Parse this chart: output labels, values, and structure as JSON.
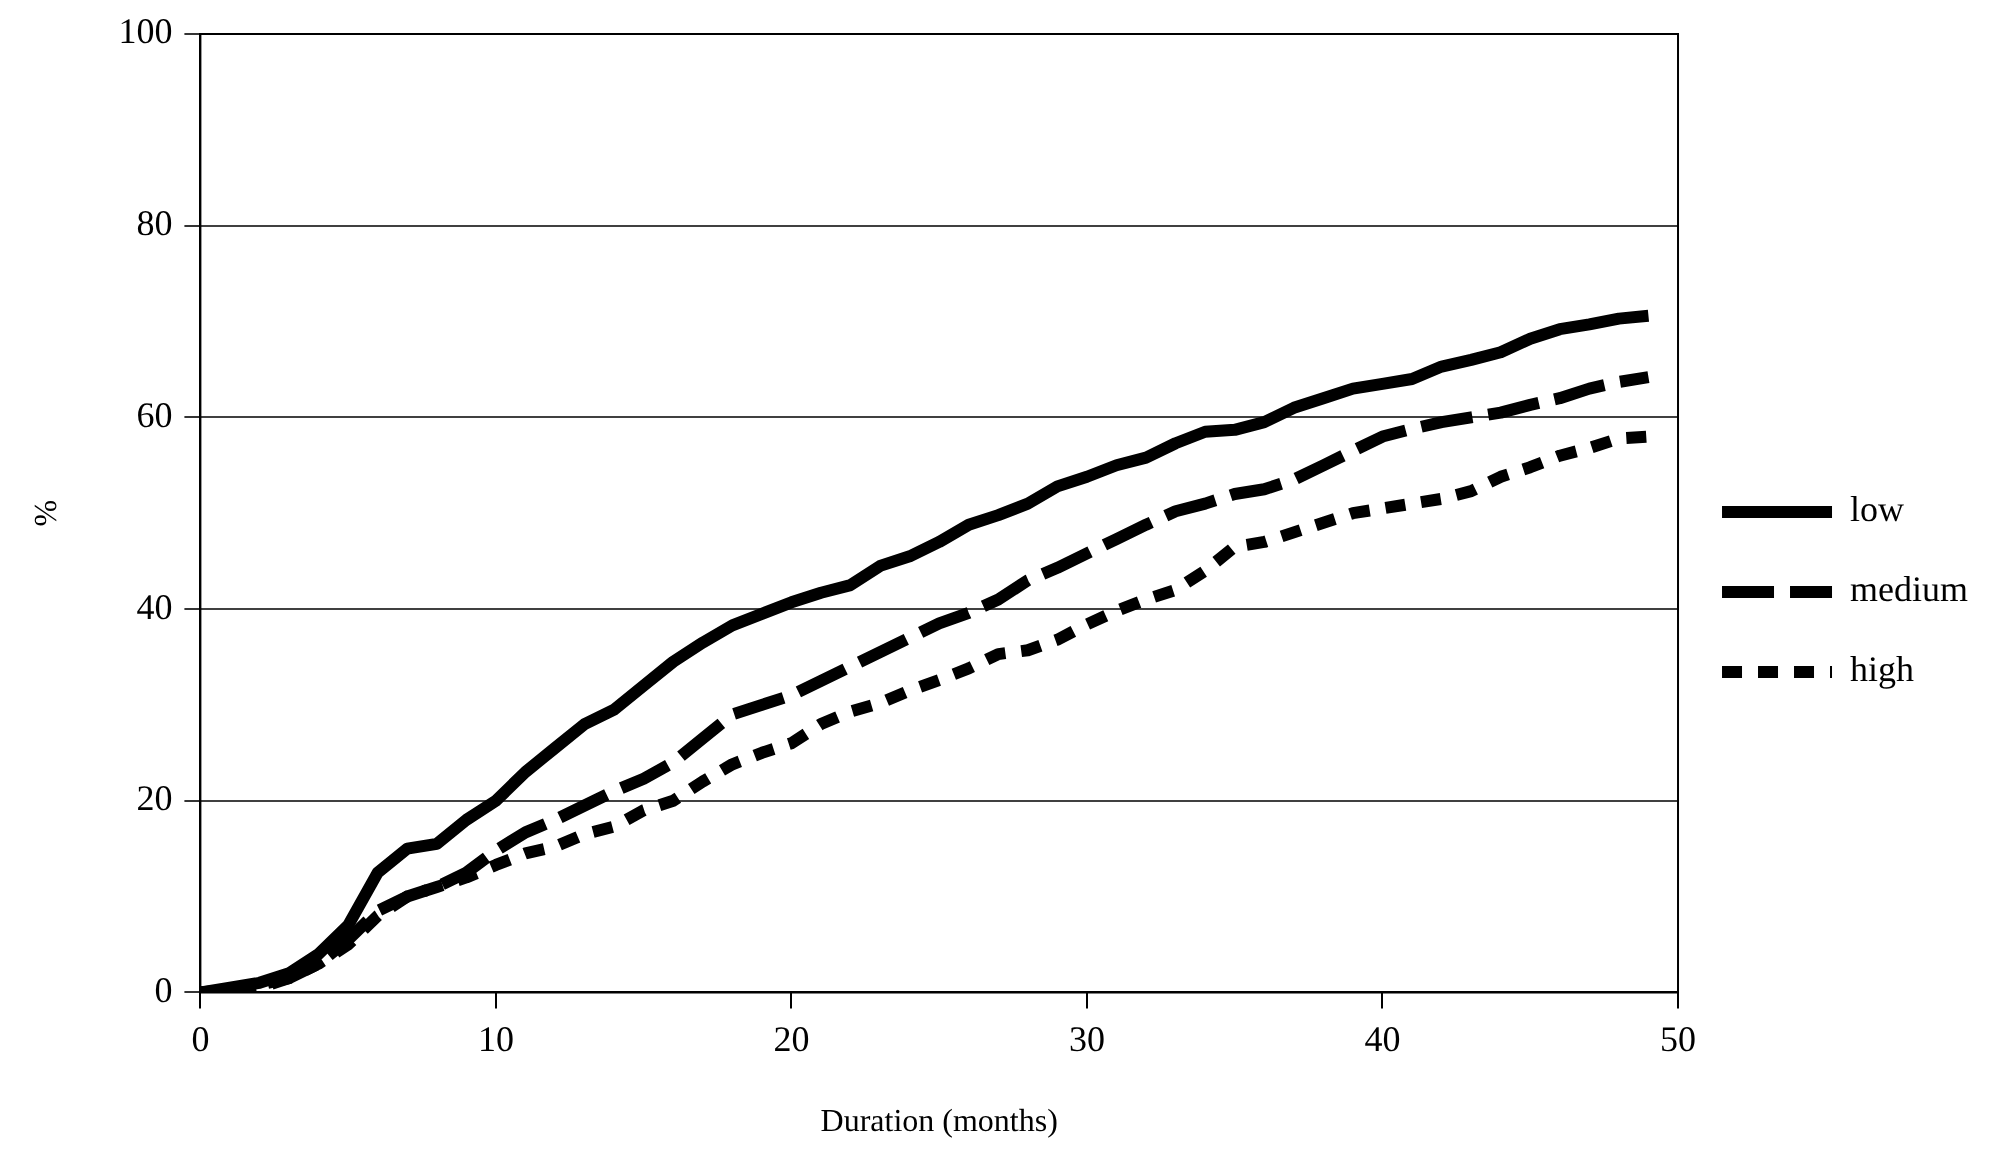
{
  "chart_data": {
    "type": "line",
    "xlabel": "Duration (months)",
    "ylabel": "%",
    "x": [
      0,
      1,
      2,
      3,
      4,
      5,
      6,
      7,
      8,
      9,
      10,
      11,
      12,
      13,
      14,
      15,
      16,
      17,
      18,
      19,
      20,
      21,
      22,
      23,
      24,
      25,
      26,
      27,
      28,
      29,
      30,
      31,
      32,
      33,
      34,
      35,
      36,
      37,
      38,
      39,
      40,
      41,
      42,
      43,
      44,
      45,
      46,
      47,
      48,
      49
    ],
    "series": [
      {
        "name": "low",
        "color": "#000000",
        "line_style": "solid",
        "values": [
          0,
          0.5,
          1,
          2,
          4,
          7,
          12.5,
          15,
          15.5,
          18,
          20,
          23,
          25.5,
          28,
          29.5,
          32,
          34.5,
          36.5,
          38.3,
          39.5,
          40.7,
          41.7,
          42.5,
          44.5,
          45.5,
          47,
          48.8,
          49.8,
          51,
          52.8,
          53.8,
          55,
          55.8,
          57.3,
          58.5,
          58.7,
          59.5,
          61,
          62,
          63,
          63.5,
          64,
          65.3,
          66,
          66.8,
          68.2,
          69.2,
          69.7,
          70.3,
          70.6
        ]
      },
      {
        "name": "medium",
        "color": "#000000",
        "line_style": "dashed",
        "values": [
          0,
          0.3,
          0.8,
          1.5,
          3,
          5.5,
          8.5,
          10,
          11,
          12.5,
          14.8,
          16.7,
          18,
          19.5,
          21,
          22.3,
          24,
          26.5,
          29,
          30,
          31,
          32.5,
          34,
          35.5,
          37,
          38.5,
          39.6,
          41,
          43,
          44.3,
          45.8,
          47.3,
          48.8,
          50.2,
          51,
          52,
          52.5,
          53.5,
          55,
          56.5,
          58,
          58.8,
          59.5,
          60,
          60.5,
          61.3,
          62,
          63,
          63.7,
          64.2
        ]
      },
      {
        "name": "high",
        "color": "#000000",
        "line_style": "dotted",
        "values": [
          0,
          0.2,
          0.5,
          1.5,
          3,
          5,
          8,
          10,
          11,
          12,
          13.3,
          14.5,
          15.2,
          16.5,
          17.3,
          19,
          20,
          22,
          23.8,
          25,
          26,
          28,
          29.3,
          30.2,
          31.5,
          32.6,
          33.8,
          35.3,
          35.7,
          36.8,
          38.4,
          39.8,
          41,
          42,
          44,
          46.5,
          47,
          48,
          49,
          50,
          50.5,
          51,
          51.5,
          52.3,
          53.8,
          54.8,
          56,
          56.8,
          57.8,
          58
        ]
      }
    ],
    "xlim": [
      0,
      50
    ],
    "xticks": [
      0,
      10,
      20,
      30,
      40,
      50
    ],
    "ylim": [
      0,
      100
    ],
    "yticks": [
      0,
      20,
      40,
      60,
      80,
      100
    ],
    "grid": "y",
    "legend": "right",
    "marker": "none"
  }
}
